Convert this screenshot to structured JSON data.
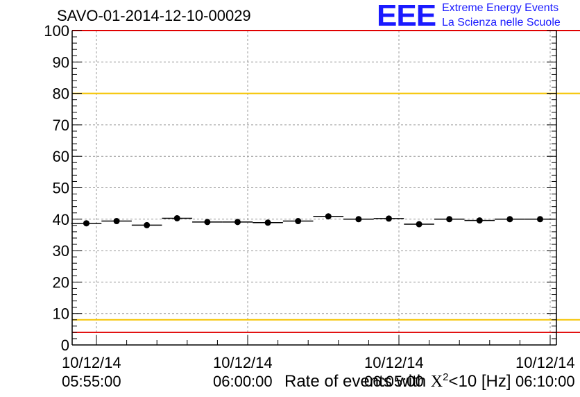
{
  "header": {
    "run_title": "SAVO-01-2014-12-10-00029",
    "logo_text": "EEE",
    "logo_line1": "Extreme Energy Events",
    "logo_line2": "La Scienza nelle Scuole"
  },
  "chart_data": {
    "type": "scatter",
    "title": "SAVO-01-2014-12-10-00029",
    "xlabel_prefix": "Rate of events with ",
    "xlabel_symbol": "X",
    "xlabel_sup": "2",
    "xlabel_suffix": "<10 [Hz]",
    "ylabel": "",
    "ylim": [
      0,
      100
    ],
    "yticks": [
      "0",
      "10",
      "20",
      "30",
      "40",
      "50",
      "60",
      "70",
      "80",
      "90",
      "100"
    ],
    "xtick_labels": [
      {
        "date": "10/12/14",
        "time": "05:55:00"
      },
      {
        "date": "10/12/14",
        "time": "06:00:00"
      },
      {
        "date": "10/12/14",
        "time": "06:05:00"
      },
      {
        "date": "10/12/14",
        "time": "06:10:00"
      }
    ],
    "grid": true,
    "reference_lines": [
      {
        "value": 80,
        "color": "#f5c400"
      },
      {
        "value": 8,
        "color": "#f5c400"
      },
      {
        "value": 4,
        "color": "#e00000"
      },
      {
        "value": 100,
        "color": "#e00000"
      }
    ],
    "points": [
      {
        "time": "05:54:40",
        "value": 38.7
      },
      {
        "time": "05:55:40",
        "value": 39.4
      },
      {
        "time": "05:56:40",
        "value": 38.1
      },
      {
        "time": "05:57:40",
        "value": 40.3
      },
      {
        "time": "05:58:40",
        "value": 39.1
      },
      {
        "time": "05:59:40",
        "value": 39.1
      },
      {
        "time": "06:00:40",
        "value": 38.9
      },
      {
        "time": "06:01:40",
        "value": 39.4
      },
      {
        "time": "06:02:40",
        "value": 40.9
      },
      {
        "time": "06:03:40",
        "value": 40.0
      },
      {
        "time": "06:04:40",
        "value": 40.2
      },
      {
        "time": "06:05:40",
        "value": 38.4
      },
      {
        "time": "06:06:40",
        "value": 40.0
      },
      {
        "time": "06:07:40",
        "value": 39.6
      },
      {
        "time": "06:08:40",
        "value": 40.0
      },
      {
        "time": "06:09:40",
        "value": 40.0
      }
    ],
    "colors": {
      "marker": "#000000",
      "grid": "#999999",
      "axis": "#000000"
    }
  }
}
